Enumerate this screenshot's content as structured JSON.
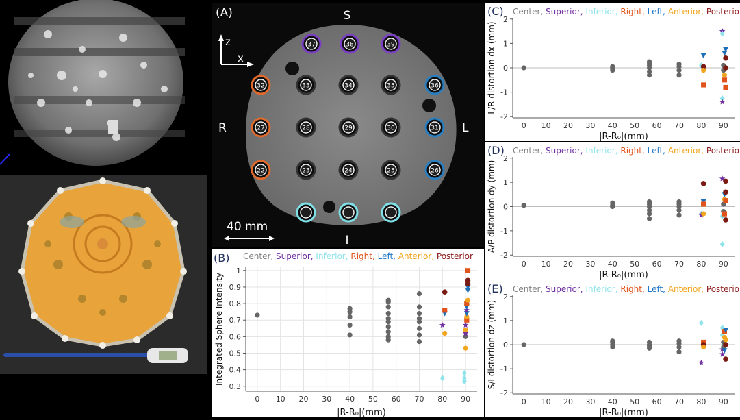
{
  "mri": {
    "panel_label": "(A)",
    "dir_top": "S",
    "dir_bottom": "I",
    "dir_left": "R",
    "dir_right": "L",
    "axis_z": "z",
    "axis_x": "x",
    "scale_text": "40 mm",
    "spheres": [
      {
        "n": "37",
        "c": "#7b3fc6"
      },
      {
        "n": "38",
        "c": "#7b3fc6"
      },
      {
        "n": "39",
        "c": "#7b3fc6"
      },
      {
        "n": "32",
        "c": "#e06a2c"
      },
      {
        "n": "33",
        "c": "#333"
      },
      {
        "n": "34",
        "c": "#333"
      },
      {
        "n": "35",
        "c": "#333"
      },
      {
        "n": "36",
        "c": "#2a7fc0"
      },
      {
        "n": "27",
        "c": "#e06a2c"
      },
      {
        "n": "28",
        "c": "#333"
      },
      {
        "n": "29",
        "c": "#333"
      },
      {
        "n": "30",
        "c": "#333"
      },
      {
        "n": "31",
        "c": "#2a7fc0"
      },
      {
        "n": "22",
        "c": "#e06a2c"
      },
      {
        "n": "23",
        "c": "#333"
      },
      {
        "n": "24",
        "c": "#333"
      },
      {
        "n": "25",
        "c": "#333"
      },
      {
        "n": "26",
        "c": "#2a7fc0"
      },
      {
        "n": "",
        "c": "#7fe0e8"
      },
      {
        "n": "",
        "c": "#7fe0e8"
      },
      {
        "n": "",
        "c": "#7fe0e8"
      }
    ]
  },
  "legend": {
    "items": [
      {
        "text": "Center,",
        "color": "#7f7f7f"
      },
      {
        "text": "Superior,",
        "color": "#7030a0"
      },
      {
        "text": "Inferior,",
        "color": "#8fe3ea"
      },
      {
        "text": "Right,",
        "color": "#e0541c"
      },
      {
        "text": "Left,",
        "color": "#1f78c8"
      },
      {
        "text": "Anterior,",
        "color": "#f2a51e"
      },
      {
        "text": "Posterior",
        "color": "#8b1a1a"
      }
    ]
  },
  "colors": {
    "Center": "#666666",
    "Superior": "#7030a0",
    "Inferior": "#8fe3ea",
    "Right": "#e0541c",
    "Left": "#1f6fb8",
    "Anterior": "#f2a51e",
    "Posterior": "#7a1a12"
  },
  "chart_data": [
    {
      "id": "B",
      "panel_label": "(B)",
      "type": "scatter",
      "ylabel": "Integrated Sphere Intensity",
      "xlabel": "|R-R₀|(mm)",
      "xlim": [
        -5,
        95
      ],
      "ylim": [
        0.27,
        1.02
      ],
      "xticks": [
        0,
        10,
        20,
        30,
        40,
        50,
        60,
        70,
        80,
        90
      ],
      "yticks": [
        0.3,
        0.4,
        0.5,
        0.6,
        0.7,
        0.8,
        0.9,
        1
      ],
      "ytick_labels": [
        "0.3",
        "0.4",
        "0.5",
        "0.6",
        "0.7",
        "0.8",
        "0.9",
        "1"
      ],
      "grid": true,
      "points": [
        {
          "x": 0,
          "y": 0.73,
          "g": "Center"
        },
        {
          "x": 40,
          "y": 0.61,
          "g": "Center"
        },
        {
          "x": 40,
          "y": 0.67,
          "g": "Center"
        },
        {
          "x": 40,
          "y": 0.72,
          "g": "Center"
        },
        {
          "x": 40,
          "y": 0.75,
          "g": "Center"
        },
        {
          "x": 40,
          "y": 0.77,
          "g": "Center"
        },
        {
          "x": 56.6,
          "y": 0.58,
          "g": "Center"
        },
        {
          "x": 56.6,
          "y": 0.6,
          "g": "Center"
        },
        {
          "x": 56.6,
          "y": 0.63,
          "g": "Center"
        },
        {
          "x": 56.6,
          "y": 0.66,
          "g": "Center"
        },
        {
          "x": 56.6,
          "y": 0.69,
          "g": "Center"
        },
        {
          "x": 56.6,
          "y": 0.71,
          "g": "Center"
        },
        {
          "x": 56.6,
          "y": 0.74,
          "g": "Center"
        },
        {
          "x": 56.6,
          "y": 0.78,
          "g": "Center"
        },
        {
          "x": 56.6,
          "y": 0.81,
          "g": "Center"
        },
        {
          "x": 56.6,
          "y": 0.82,
          "g": "Center"
        },
        {
          "x": 70,
          "y": 0.57,
          "g": "Center"
        },
        {
          "x": 70,
          "y": 0.61,
          "g": "Center"
        },
        {
          "x": 70,
          "y": 0.65,
          "g": "Center"
        },
        {
          "x": 70,
          "y": 0.69,
          "g": "Center"
        },
        {
          "x": 70,
          "y": 0.71,
          "g": "Center"
        },
        {
          "x": 70,
          "y": 0.74,
          "g": "Center"
        },
        {
          "x": 70,
          "y": 0.78,
          "g": "Center"
        },
        {
          "x": 70,
          "y": 0.86,
          "g": "Center"
        },
        {
          "x": 80,
          "y": 0.35,
          "g": "Inferior"
        },
        {
          "x": 80,
          "y": 0.67,
          "g": "Superior"
        },
        {
          "x": 81,
          "y": 0.62,
          "g": "Anterior"
        },
        {
          "x": 81,
          "y": 0.74,
          "g": "Left"
        },
        {
          "x": 81,
          "y": 0.76,
          "g": "Right"
        },
        {
          "x": 81,
          "y": 0.87,
          "g": "Posterior"
        },
        {
          "x": 89.5,
          "y": 0.33,
          "g": "Inferior"
        },
        {
          "x": 89.5,
          "y": 0.35,
          "g": "Inferior"
        },
        {
          "x": 89.5,
          "y": 0.38,
          "g": "Inferior"
        },
        {
          "x": 90,
          "y": 0.53,
          "g": "Anterior"
        },
        {
          "x": 90,
          "y": 0.6,
          "g": "Center"
        },
        {
          "x": 90,
          "y": 0.62,
          "g": "Superior"
        },
        {
          "x": 90,
          "y": 0.64,
          "g": "Anterior"
        },
        {
          "x": 90,
          "y": 0.67,
          "g": "Superior"
        },
        {
          "x": 90.5,
          "y": 0.7,
          "g": "Right"
        },
        {
          "x": 90.5,
          "y": 0.72,
          "g": "Anterior"
        },
        {
          "x": 90.5,
          "y": 0.74,
          "g": "Left"
        },
        {
          "x": 90.5,
          "y": 0.76,
          "g": "Superior"
        },
        {
          "x": 90.5,
          "y": 0.78,
          "g": "Left"
        },
        {
          "x": 90.5,
          "y": 0.8,
          "g": "Right"
        },
        {
          "x": 91,
          "y": 0.82,
          "g": "Anterior"
        },
        {
          "x": 91,
          "y": 0.88,
          "g": "Left"
        },
        {
          "x": 91,
          "y": 0.9,
          "g": "Left"
        },
        {
          "x": 91,
          "y": 0.92,
          "g": "Posterior"
        },
        {
          "x": 91,
          "y": 0.94,
          "g": "Posterior"
        },
        {
          "x": 91,
          "y": 1.0,
          "g": "Right"
        }
      ]
    },
    {
      "id": "C",
      "panel_label": "(C)",
      "type": "scatter",
      "ylabel": "L/R distortion dx  (mm)",
      "xlabel": "|R-R₀|(mm)",
      "xlim": [
        -5,
        95
      ],
      "ylim": [
        -2.05,
        2.05
      ],
      "xticks": [
        0,
        10,
        20,
        30,
        40,
        50,
        60,
        70,
        80,
        90
      ],
      "yticks": [
        -2,
        -1,
        0,
        1,
        2
      ],
      "ytick_labels": [
        "-2",
        "-1",
        "0",
        "1",
        "2"
      ],
      "grid": false,
      "points": [
        {
          "x": 0,
          "y": 0,
          "g": "Center"
        },
        {
          "x": 40,
          "y": -0.1,
          "g": "Center"
        },
        {
          "x": 40,
          "y": 0,
          "g": "Center"
        },
        {
          "x": 40,
          "y": 0.05,
          "g": "Center"
        },
        {
          "x": 56.6,
          "y": -0.3,
          "g": "Center"
        },
        {
          "x": 56.6,
          "y": -0.15,
          "g": "Center"
        },
        {
          "x": 56.6,
          "y": 0,
          "g": "Center"
        },
        {
          "x": 56.6,
          "y": 0.1,
          "g": "Center"
        },
        {
          "x": 56.6,
          "y": 0.2,
          "g": "Center"
        },
        {
          "x": 56.6,
          "y": 0.25,
          "g": "Center"
        },
        {
          "x": 70,
          "y": -0.3,
          "g": "Center"
        },
        {
          "x": 70,
          "y": -0.1,
          "g": "Center"
        },
        {
          "x": 70,
          "y": 0.05,
          "g": "Center"
        },
        {
          "x": 70,
          "y": 0.15,
          "g": "Center"
        },
        {
          "x": 80,
          "y": 0.1,
          "g": "Inferior"
        },
        {
          "x": 81,
          "y": -0.7,
          "g": "Right"
        },
        {
          "x": 81,
          "y": 0.5,
          "g": "Left"
        },
        {
          "x": 81,
          "y": 0.05,
          "g": "Posterior"
        },
        {
          "x": 81,
          "y": -0.1,
          "g": "Anterior"
        },
        {
          "x": 89.5,
          "y": 1.5,
          "g": "Superior"
        },
        {
          "x": 89.5,
          "y": 1.4,
          "g": "Inferior"
        },
        {
          "x": 89.5,
          "y": -1.25,
          "g": "Inferior"
        },
        {
          "x": 89.5,
          "y": -1.4,
          "g": "Superior"
        },
        {
          "x": 90,
          "y": 0.1,
          "g": "Center"
        },
        {
          "x": 90,
          "y": -0.1,
          "g": "Center"
        },
        {
          "x": 90.5,
          "y": 0.6,
          "g": "Left"
        },
        {
          "x": 90.5,
          "y": -0.3,
          "g": "Anterior"
        },
        {
          "x": 90.5,
          "y": -0.5,
          "g": "Right"
        },
        {
          "x": 91,
          "y": 0.4,
          "g": "Posterior"
        },
        {
          "x": 91,
          "y": -0.8,
          "g": "Right"
        },
        {
          "x": 91,
          "y": 0.75,
          "g": "Left"
        },
        {
          "x": 91,
          "y": 0.0,
          "g": "Posterior"
        }
      ]
    },
    {
      "id": "D",
      "panel_label": "(D)",
      "type": "scatter",
      "ylabel": "A/P distortion dy  (mm)",
      "xlabel": "|R-R₀|(mm)",
      "xlim": [
        -5,
        95
      ],
      "ylim": [
        -2.05,
        2.05
      ],
      "xticks": [
        0,
        10,
        20,
        30,
        40,
        50,
        60,
        70,
        80,
        90
      ],
      "yticks": [
        -2,
        -1,
        0,
        1,
        2
      ],
      "ytick_labels": [
        "-2",
        "-1",
        "0",
        "1",
        "2"
      ],
      "grid": false,
      "points": [
        {
          "x": 0,
          "y": 0.05,
          "g": "Center"
        },
        {
          "x": 40,
          "y": 0,
          "g": "Center"
        },
        {
          "x": 40,
          "y": 0.05,
          "g": "Center"
        },
        {
          "x": 40,
          "y": 0.15,
          "g": "Center"
        },
        {
          "x": 56.6,
          "y": -0.5,
          "g": "Center"
        },
        {
          "x": 56.6,
          "y": -0.3,
          "g": "Center"
        },
        {
          "x": 56.6,
          "y": -0.15,
          "g": "Center"
        },
        {
          "x": 56.6,
          "y": 0,
          "g": "Center"
        },
        {
          "x": 56.6,
          "y": 0.1,
          "g": "Center"
        },
        {
          "x": 56.6,
          "y": 0.2,
          "g": "Center"
        },
        {
          "x": 70,
          "y": -0.35,
          "g": "Center"
        },
        {
          "x": 70,
          "y": -0.15,
          "g": "Center"
        },
        {
          "x": 70,
          "y": 0,
          "g": "Center"
        },
        {
          "x": 70,
          "y": 0.1,
          "g": "Center"
        },
        {
          "x": 70,
          "y": 0.2,
          "g": "Center"
        },
        {
          "x": 80,
          "y": -0.3,
          "g": "Inferior"
        },
        {
          "x": 80,
          "y": -0.35,
          "g": "Superior"
        },
        {
          "x": 81,
          "y": 0.95,
          "g": "Posterior"
        },
        {
          "x": 81,
          "y": 0.2,
          "g": "Left"
        },
        {
          "x": 81,
          "y": 0.1,
          "g": "Right"
        },
        {
          "x": 81,
          "y": -0.3,
          "g": "Anterior"
        },
        {
          "x": 89.5,
          "y": -1.55,
          "g": "Inferior"
        },
        {
          "x": 89.5,
          "y": 1.15,
          "g": "Superior"
        },
        {
          "x": 89.5,
          "y": -0.4,
          "g": "Inferior"
        },
        {
          "x": 90,
          "y": 0.1,
          "g": "Center"
        },
        {
          "x": 90,
          "y": -0.2,
          "g": "Center"
        },
        {
          "x": 90.5,
          "y": 0.5,
          "g": "Left"
        },
        {
          "x": 90.5,
          "y": 0.3,
          "g": "Anterior"
        },
        {
          "x": 90.5,
          "y": -0.3,
          "g": "Right"
        },
        {
          "x": 91,
          "y": 1.05,
          "g": "Posterior"
        },
        {
          "x": 91,
          "y": 0.6,
          "g": "Posterior"
        },
        {
          "x": 91,
          "y": -0.55,
          "g": "Posterior"
        },
        {
          "x": 91,
          "y": 0.25,
          "g": "Right"
        }
      ]
    },
    {
      "id": "E",
      "panel_label": "(E)",
      "type": "scatter",
      "ylabel": "S/I distortion dz  (mm)",
      "xlabel": "|R-R₀|(mm)",
      "xlim": [
        -5,
        95
      ],
      "ylim": [
        -2.05,
        2.05
      ],
      "xticks": [
        0,
        10,
        20,
        30,
        40,
        50,
        60,
        70,
        80,
        90
      ],
      "yticks": [
        -2,
        -1,
        0,
        1,
        2
      ],
      "ytick_labels": [
        "-2",
        "-1",
        "0",
        "1",
        "2"
      ],
      "grid": false,
      "points": [
        {
          "x": 0,
          "y": 0,
          "g": "Center"
        },
        {
          "x": 40,
          "y": -0.1,
          "g": "Center"
        },
        {
          "x": 40,
          "y": 0,
          "g": "Center"
        },
        {
          "x": 40,
          "y": 0.1,
          "g": "Center"
        },
        {
          "x": 40,
          "y": 0.15,
          "g": "Center"
        },
        {
          "x": 56.6,
          "y": -0.15,
          "g": "Center"
        },
        {
          "x": 56.6,
          "y": -0.05,
          "g": "Center"
        },
        {
          "x": 56.6,
          "y": 0,
          "g": "Center"
        },
        {
          "x": 56.6,
          "y": 0.1,
          "g": "Center"
        },
        {
          "x": 70,
          "y": -0.3,
          "g": "Center"
        },
        {
          "x": 70,
          "y": -0.1,
          "g": "Center"
        },
        {
          "x": 70,
          "y": 0.05,
          "g": "Center"
        },
        {
          "x": 70,
          "y": 0.15,
          "g": "Center"
        },
        {
          "x": 80,
          "y": 0.9,
          "g": "Inferior"
        },
        {
          "x": 80,
          "y": -0.75,
          "g": "Superior"
        },
        {
          "x": 81,
          "y": 0.1,
          "g": "Right"
        },
        {
          "x": 81,
          "y": 0.0,
          "g": "Posterior"
        },
        {
          "x": 81,
          "y": -0.1,
          "g": "Anterior"
        },
        {
          "x": 89.5,
          "y": 0.7,
          "g": "Inferior"
        },
        {
          "x": 89.5,
          "y": 0.4,
          "g": "Inferior"
        },
        {
          "x": 89.5,
          "y": -0.4,
          "g": "Superior"
        },
        {
          "x": 89.5,
          "y": -0.2,
          "g": "Superior"
        },
        {
          "x": 90,
          "y": 0.1,
          "g": "Center"
        },
        {
          "x": 90,
          "y": -0.1,
          "g": "Center"
        },
        {
          "x": 90.5,
          "y": 0.55,
          "g": "Right"
        },
        {
          "x": 90.5,
          "y": 0.3,
          "g": "Anterior"
        },
        {
          "x": 90.5,
          "y": -0.25,
          "g": "Left"
        },
        {
          "x": 91,
          "y": 0.6,
          "g": "Left"
        },
        {
          "x": 91,
          "y": 0.2,
          "g": "Anterior"
        },
        {
          "x": 91,
          "y": -0.6,
          "g": "Posterior"
        },
        {
          "x": 91,
          "y": 0.0,
          "g": "Posterior"
        }
      ]
    }
  ]
}
